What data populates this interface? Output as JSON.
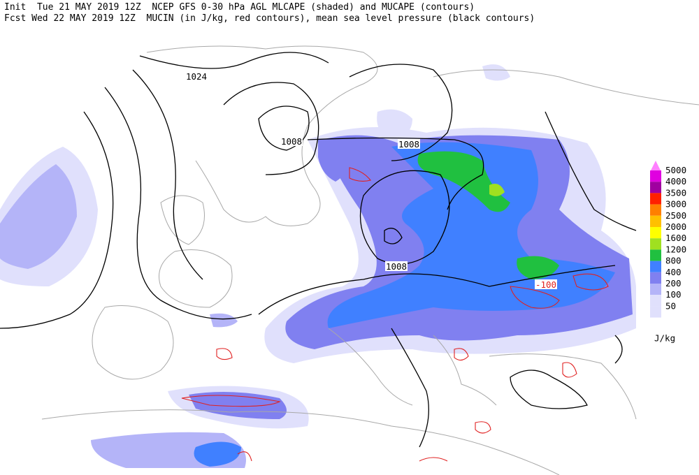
{
  "header": {
    "line1": "Init  Tue 21 MAY 2019 12Z  NCEP GFS 0-30 hPa AGL MLCAPE (shaded) and MUCAPE (contours)",
    "line2": "Fcst Wed 22 MAY 2019 12Z  MUCIN (in J/kg, red contours), mean sea level pressure (black contours)"
  },
  "contour_labels": [
    {
      "text": "1024",
      "color": "#000000"
    },
    {
      "text": "1008",
      "color": "#000000"
    },
    {
      "text": "1008",
      "color": "#000000"
    },
    {
      "text": "1008",
      "color": "#000000"
    },
    {
      "text": "-100",
      "color": "#e02020"
    }
  ],
  "legend": {
    "unit": "J/kg",
    "levels": [
      {
        "label": "5000",
        "color": "#ff80ff"
      },
      {
        "label": "4000",
        "color": "#e000e0"
      },
      {
        "label": "3500",
        "color": "#a000a0"
      },
      {
        "label": "3000",
        "color": "#ff2000"
      },
      {
        "label": "2500",
        "color": "#ff8000"
      },
      {
        "label": "2000",
        "color": "#ffc000"
      },
      {
        "label": "1600",
        "color": "#ffff00"
      },
      {
        "label": "1200",
        "color": "#a0e020"
      },
      {
        "label": "800",
        "color": "#20c040"
      },
      {
        "label": "400",
        "color": "#4080ff"
      },
      {
        "label": "200",
        "color": "#8080f0"
      },
      {
        "label": "100",
        "color": "#b4b4f8"
      },
      {
        "label": "50",
        "color": "#e0e0fc"
      }
    ]
  }
}
